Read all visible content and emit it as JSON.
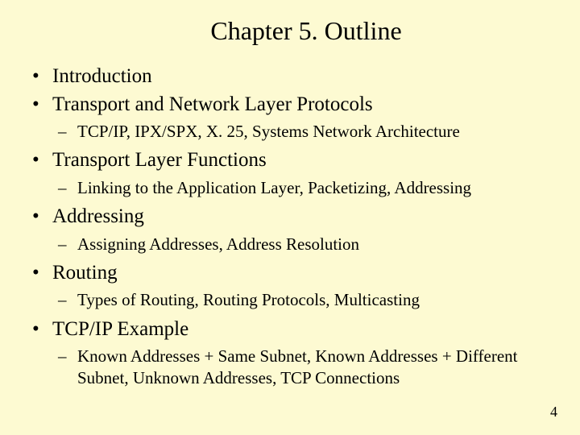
{
  "slide": {
    "title": "Chapter 5. Outline",
    "background_color": "#fdfad2",
    "text_color": "#000000",
    "title_fontsize": 32,
    "bullet_fontsize": 25,
    "sub_fontsize": 21,
    "font_family": "Georgia, Times New Roman, serif",
    "items": [
      {
        "label": "Introduction",
        "sub": null
      },
      {
        "label": "Transport and Network Layer Protocols",
        "sub": "TCP/IP, IPX/SPX, X. 25, Systems Network Architecture"
      },
      {
        "label": "Transport Layer Functions",
        "sub": "Linking to the Application Layer, Packetizing, Addressing"
      },
      {
        "label": "Addressing",
        "sub": "Assigning Addresses, Address Resolution"
      },
      {
        "label": "Routing",
        "sub": "Types of Routing, Routing Protocols, Multicasting"
      },
      {
        "label": "TCP/IP Example",
        "sub": "Known Addresses + Same Subnet, Known Addresses + Different Subnet, Unknown Addresses, TCP Connections"
      }
    ],
    "page_number": "4"
  }
}
